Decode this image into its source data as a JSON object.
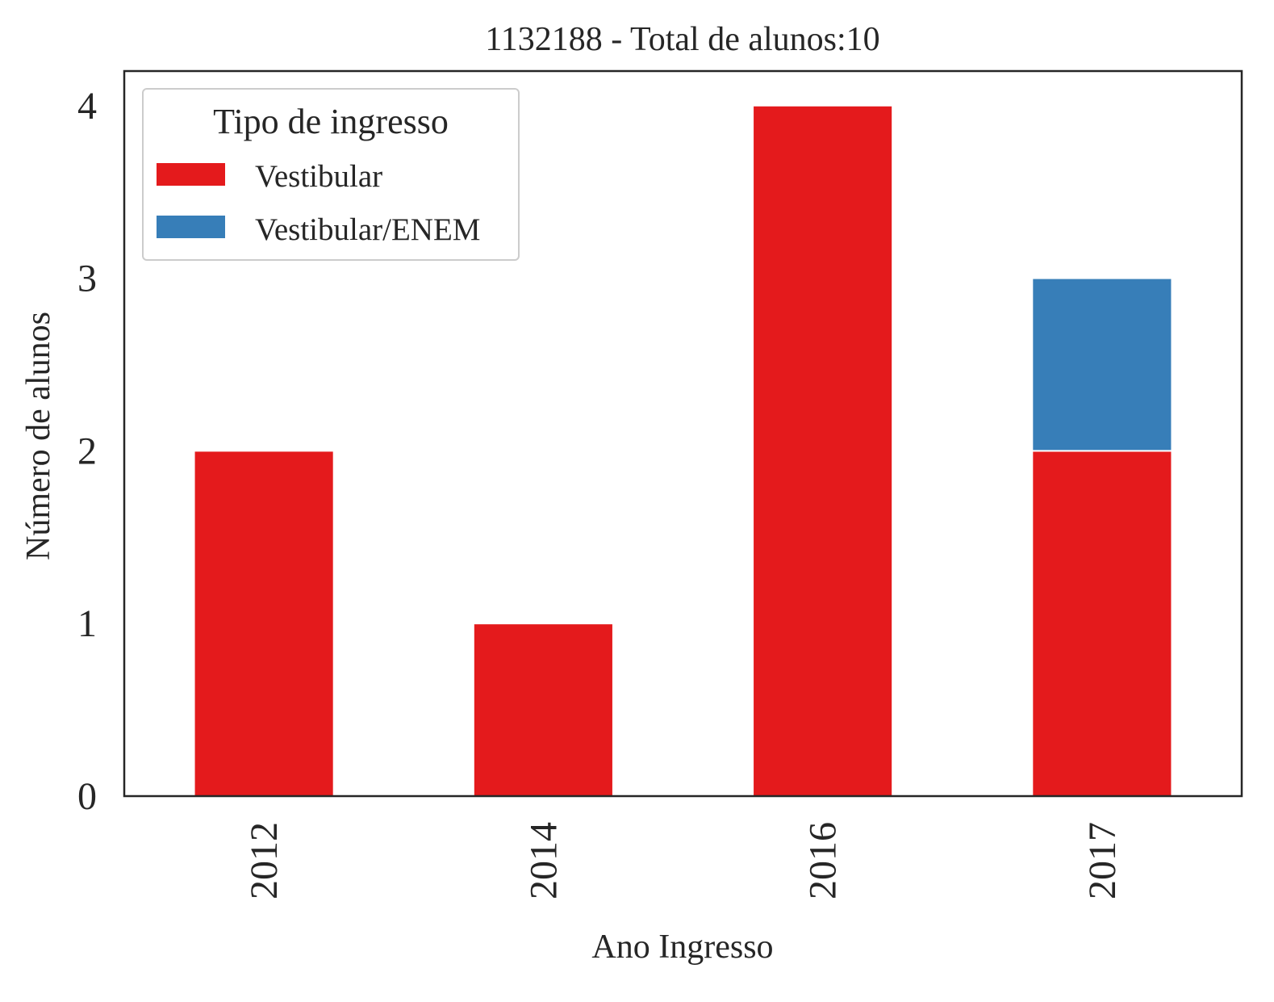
{
  "chart_data": {
    "type": "bar",
    "stacked": true,
    "title": "1132188 - Total de alunos:10",
    "xlabel": "Ano Ingresso",
    "ylabel": "Número de alunos",
    "categories": [
      "2012",
      "2014",
      "2016",
      "2017"
    ],
    "series": [
      {
        "name": "Vestibular",
        "values": [
          2,
          1,
          4,
          2
        ],
        "color": "#e41a1c"
      },
      {
        "name": "Vestibular/ENEM",
        "values": [
          0,
          0,
          0,
          1
        ],
        "color": "#377eb8"
      }
    ],
    "ylim": [
      0,
      4.2
    ],
    "yticks": [
      0,
      1,
      2,
      3,
      4
    ],
    "x_tick_rotation": "vertical",
    "grid": false,
    "legend": {
      "title": "Tipo de ingresso",
      "placement": "top-left"
    }
  }
}
